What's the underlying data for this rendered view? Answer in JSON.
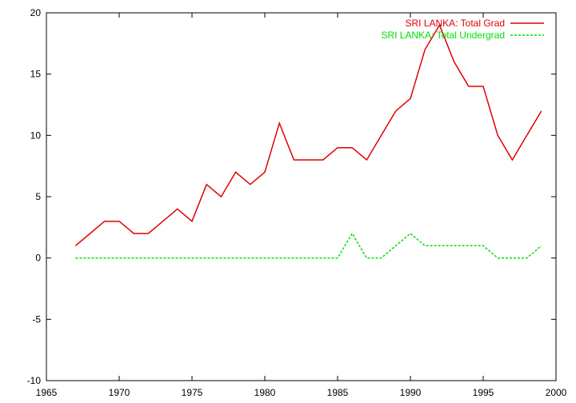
{
  "chart_data": {
    "type": "line",
    "title": "",
    "xlabel": "",
    "ylabel": "",
    "xlim": [
      1965,
      2000
    ],
    "ylim": [
      -10,
      20
    ],
    "xticks": [
      1965,
      1970,
      1975,
      1980,
      1985,
      1990,
      1995,
      2000
    ],
    "yticks": [
      -10,
      -5,
      0,
      5,
      10,
      15,
      20
    ],
    "grid": false,
    "legend_position": "top-right",
    "series": [
      {
        "name": "SRI LANKA: Total Grad",
        "color": "#e00000",
        "dash": "solid",
        "x": [
          1967,
          1968,
          1969,
          1970,
          1971,
          1972,
          1973,
          1974,
          1975,
          1976,
          1977,
          1978,
          1979,
          1980,
          1981,
          1982,
          1983,
          1984,
          1985,
          1986,
          1987,
          1988,
          1989,
          1990,
          1991,
          1992,
          1993,
          1994,
          1995,
          1996,
          1997,
          1998,
          1999
        ],
        "y": [
          1,
          2,
          3,
          3,
          2,
          2,
          3,
          4,
          3,
          6,
          5,
          7,
          6,
          7,
          11,
          8,
          8,
          8,
          9,
          9,
          8,
          10,
          12,
          13,
          17,
          19,
          16,
          14,
          14,
          10,
          8,
          10,
          12
        ]
      },
      {
        "name": "SRI LANKA: Total Undergrad",
        "color": "#00e000",
        "dash": "dashed",
        "x": [
          1967,
          1968,
          1969,
          1970,
          1971,
          1972,
          1973,
          1974,
          1975,
          1976,
          1977,
          1978,
          1979,
          1980,
          1981,
          1982,
          1983,
          1984,
          1985,
          1986,
          1987,
          1988,
          1989,
          1990,
          1991,
          1992,
          1993,
          1994,
          1995,
          1996,
          1997,
          1998,
          1999
        ],
        "y": [
          0,
          0,
          0,
          0,
          0,
          0,
          0,
          0,
          0,
          0,
          0,
          0,
          0,
          0,
          0,
          0,
          0,
          0,
          0,
          2,
          0,
          0,
          1,
          2,
          1,
          1,
          1,
          1,
          1,
          0,
          0,
          0,
          1
        ]
      }
    ]
  }
}
